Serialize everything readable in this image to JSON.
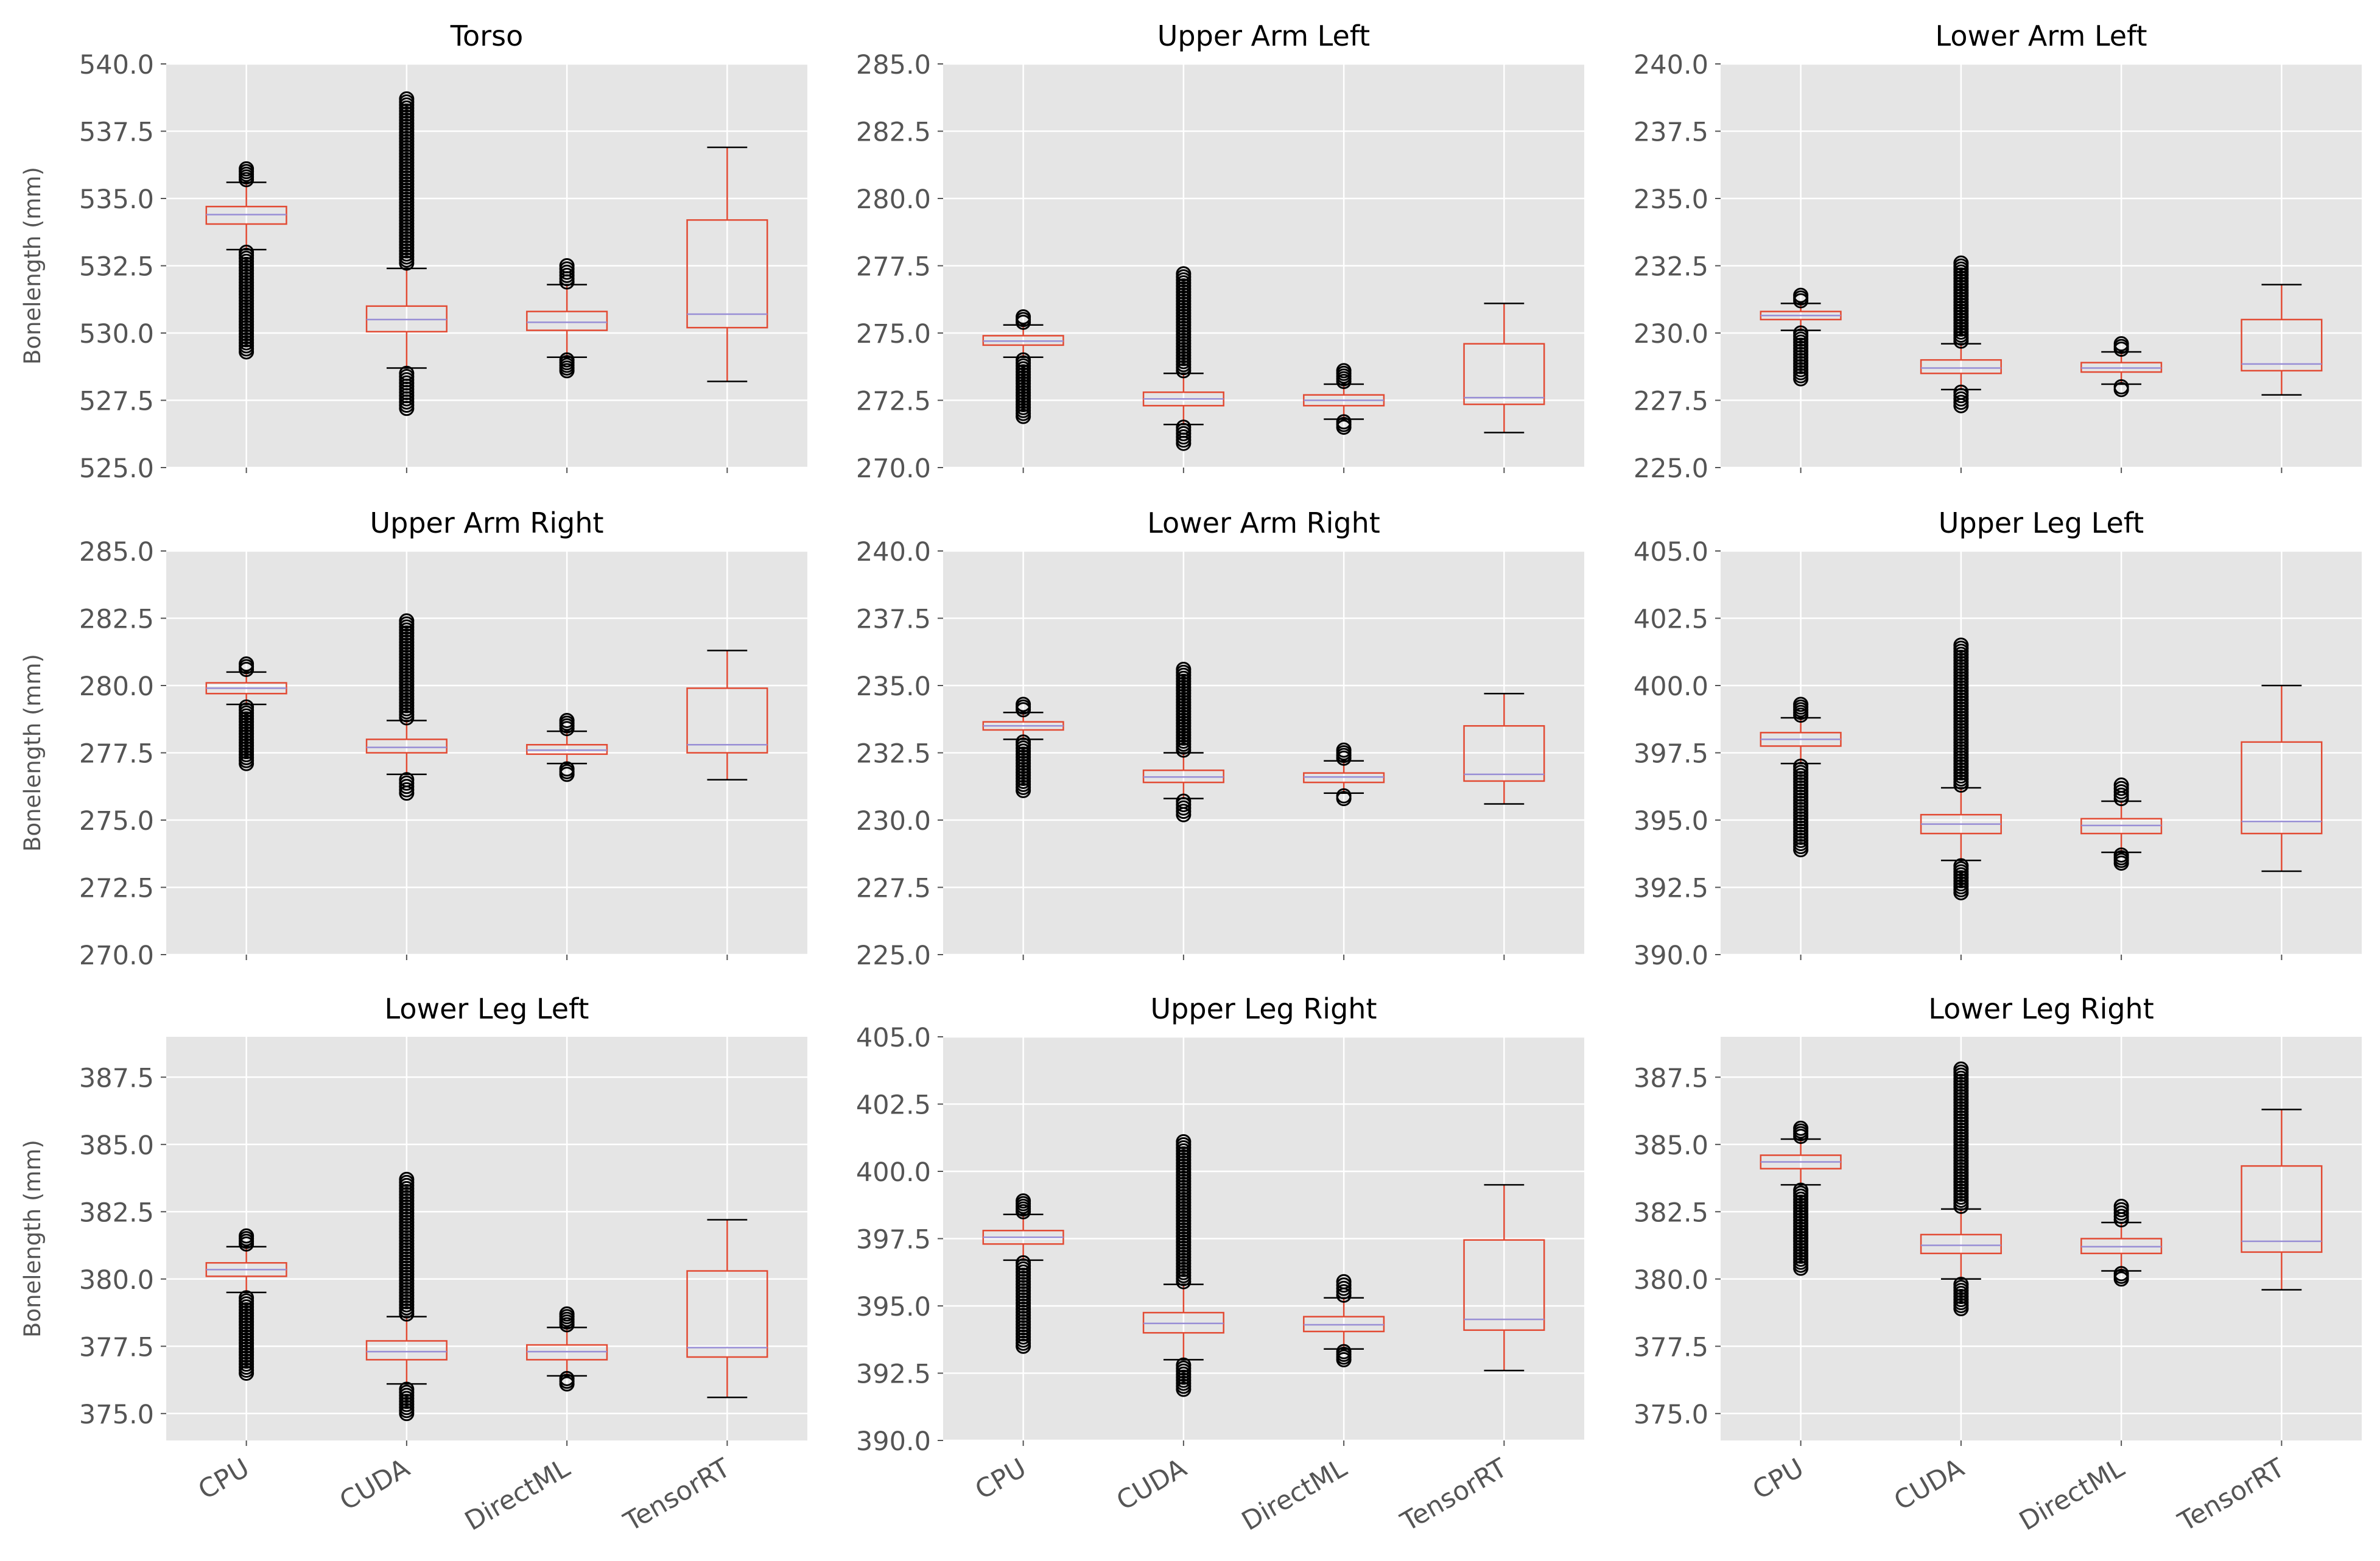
{
  "figure": {
    "background": "#ffffff",
    "panel_background": "#e5e5e5",
    "grid_color": "#ffffff",
    "box_color": "#e24a33",
    "median_color": "#988ed5",
    "text_color": "#555555",
    "title_color": "#000000"
  },
  "chart_data": [
    {
      "type": "box",
      "title": "Torso",
      "ylabel": "Bonelength (mm)",
      "ylim": [
        525.0,
        540.0
      ],
      "yticks": [
        "525.0",
        "527.5",
        "530.0",
        "532.5",
        "535.0",
        "537.5",
        "540.0"
      ],
      "categories": [
        "CPU",
        "CUDA",
        "DirectML",
        "TensorRT"
      ],
      "series": [
        {
          "whisker_low": 533.1,
          "q1": 534.05,
          "median": 534.4,
          "q3": 534.7,
          "whisker_high": 535.6,
          "outliers_low": [
            529.3,
            533.0
          ],
          "outliers_high": [
            535.7,
            536.1
          ]
        },
        {
          "whisker_low": 528.7,
          "q1": 530.05,
          "median": 530.5,
          "q3": 531.0,
          "whisker_high": 532.4,
          "outliers_low": [
            527.2,
            528.5
          ],
          "outliers_high": [
            532.6,
            538.7
          ]
        },
        {
          "whisker_low": 529.1,
          "q1": 530.1,
          "median": 530.4,
          "q3": 530.8,
          "whisker_high": 531.8,
          "outliers_low": [
            528.6,
            529.0
          ],
          "outliers_high": [
            531.9,
            532.5
          ]
        },
        {
          "whisker_low": 528.2,
          "q1": 530.2,
          "median": 530.7,
          "q3": 534.2,
          "whisker_high": 536.9,
          "outliers_low": [],
          "outliers_high": []
        }
      ]
    },
    {
      "type": "box",
      "title": "Upper Arm Left",
      "ylabel": "",
      "ylim": [
        270.0,
        285.0
      ],
      "yticks": [
        "270.0",
        "272.5",
        "275.0",
        "277.5",
        "280.0",
        "282.5",
        "285.0"
      ],
      "categories": [
        "CPU",
        "CUDA",
        "DirectML",
        "TensorRT"
      ],
      "series": [
        {
          "whisker_low": 274.1,
          "q1": 274.55,
          "median": 274.7,
          "q3": 274.9,
          "whisker_high": 275.3,
          "outliers_low": [
            271.9,
            274.0
          ],
          "outliers_high": [
            275.4,
            275.6
          ]
        },
        {
          "whisker_low": 271.6,
          "q1": 272.3,
          "median": 272.55,
          "q3": 272.8,
          "whisker_high": 273.5,
          "outliers_low": [
            270.9,
            271.5
          ],
          "outliers_high": [
            273.6,
            277.2
          ]
        },
        {
          "whisker_low": 271.8,
          "q1": 272.3,
          "median": 272.5,
          "q3": 272.7,
          "whisker_high": 273.1,
          "outliers_low": [
            271.5,
            271.7
          ],
          "outliers_high": [
            273.2,
            273.6
          ]
        },
        {
          "whisker_low": 271.3,
          "q1": 272.35,
          "median": 272.6,
          "q3": 274.6,
          "whisker_high": 276.1,
          "outliers_low": [],
          "outliers_high": []
        }
      ]
    },
    {
      "type": "box",
      "title": "Lower Arm Left",
      "ylabel": "",
      "ylim": [
        225.0,
        240.0
      ],
      "yticks": [
        "225.0",
        "227.5",
        "230.0",
        "232.5",
        "235.0",
        "237.5",
        "240.0"
      ],
      "categories": [
        "CPU",
        "CUDA",
        "DirectML",
        "TensorRT"
      ],
      "series": [
        {
          "whisker_low": 230.1,
          "q1": 230.5,
          "median": 230.65,
          "q3": 230.8,
          "whisker_high": 231.1,
          "outliers_low": [
            228.3,
            230.0
          ],
          "outliers_high": [
            231.2,
            231.4
          ]
        },
        {
          "whisker_low": 227.9,
          "q1": 228.5,
          "median": 228.7,
          "q3": 229.0,
          "whisker_high": 229.6,
          "outliers_low": [
            227.3,
            227.8
          ],
          "outliers_high": [
            229.7,
            232.6
          ]
        },
        {
          "whisker_low": 228.1,
          "q1": 228.55,
          "median": 228.7,
          "q3": 228.9,
          "whisker_high": 229.3,
          "outliers_low": [
            227.9,
            228.0
          ],
          "outliers_high": [
            229.4,
            229.6
          ]
        },
        {
          "whisker_low": 227.7,
          "q1": 228.6,
          "median": 228.85,
          "q3": 230.5,
          "whisker_high": 231.8,
          "outliers_low": [],
          "outliers_high": []
        }
      ]
    },
    {
      "type": "box",
      "title": "Upper Arm Right",
      "ylabel": "Bonelength (mm)",
      "ylim": [
        270.0,
        285.0
      ],
      "yticks": [
        "270.0",
        "272.5",
        "275.0",
        "277.5",
        "280.0",
        "282.5",
        "285.0"
      ],
      "categories": [
        "CPU",
        "CUDA",
        "DirectML",
        "TensorRT"
      ],
      "series": [
        {
          "whisker_low": 279.3,
          "q1": 279.7,
          "median": 279.9,
          "q3": 280.1,
          "whisker_high": 280.5,
          "outliers_low": [
            277.1,
            279.2
          ],
          "outliers_high": [
            280.6,
            280.8
          ]
        },
        {
          "whisker_low": 276.7,
          "q1": 277.5,
          "median": 277.7,
          "q3": 278.0,
          "whisker_high": 278.7,
          "outliers_low": [
            276.0,
            276.5
          ],
          "outliers_high": [
            278.8,
            282.4
          ]
        },
        {
          "whisker_low": 277.1,
          "q1": 277.45,
          "median": 277.6,
          "q3": 277.8,
          "whisker_high": 278.3,
          "outliers_low": [
            276.7,
            276.9
          ],
          "outliers_high": [
            278.4,
            278.7
          ]
        },
        {
          "whisker_low": 276.5,
          "q1": 277.5,
          "median": 277.8,
          "q3": 279.9,
          "whisker_high": 281.3,
          "outliers_low": [],
          "outliers_high": []
        }
      ]
    },
    {
      "type": "box",
      "title": "Lower Arm Right",
      "ylabel": "",
      "ylim": [
        225.0,
        240.0
      ],
      "yticks": [
        "225.0",
        "227.5",
        "230.0",
        "232.5",
        "235.0",
        "237.5",
        "240.0"
      ],
      "categories": [
        "CPU",
        "CUDA",
        "DirectML",
        "TensorRT"
      ],
      "series": [
        {
          "whisker_low": 233.0,
          "q1": 233.35,
          "median": 233.5,
          "q3": 233.65,
          "whisker_high": 234.0,
          "outliers_low": [
            231.1,
            232.9
          ],
          "outliers_high": [
            234.1,
            234.3
          ]
        },
        {
          "whisker_low": 230.8,
          "q1": 231.4,
          "median": 231.6,
          "q3": 231.85,
          "whisker_high": 232.5,
          "outliers_low": [
            230.2,
            230.7
          ],
          "outliers_high": [
            232.6,
            235.6
          ]
        },
        {
          "whisker_low": 231.0,
          "q1": 231.4,
          "median": 231.6,
          "q3": 231.75,
          "whisker_high": 232.2,
          "outliers_low": [
            230.8,
            230.9
          ],
          "outliers_high": [
            232.3,
            232.6
          ]
        },
        {
          "whisker_low": 230.6,
          "q1": 231.45,
          "median": 231.7,
          "q3": 233.5,
          "whisker_high": 234.7,
          "outliers_low": [],
          "outliers_high": []
        }
      ]
    },
    {
      "type": "box",
      "title": "Upper Leg Left",
      "ylabel": "",
      "ylim": [
        390.0,
        405.0
      ],
      "yticks": [
        "390.0",
        "392.5",
        "395.0",
        "397.5",
        "400.0",
        "402.5",
        "405.0"
      ],
      "categories": [
        "CPU",
        "CUDA",
        "DirectML",
        "TensorRT"
      ],
      "series": [
        {
          "whisker_low": 397.1,
          "q1": 397.75,
          "median": 398.0,
          "q3": 398.25,
          "whisker_high": 398.8,
          "outliers_low": [
            393.9,
            397.0
          ],
          "outliers_high": [
            398.9,
            399.3
          ]
        },
        {
          "whisker_low": 393.5,
          "q1": 394.5,
          "median": 394.85,
          "q3": 395.2,
          "whisker_high": 396.2,
          "outliers_low": [
            392.3,
            393.3
          ],
          "outliers_high": [
            396.3,
            401.5
          ]
        },
        {
          "whisker_low": 393.8,
          "q1": 394.5,
          "median": 394.8,
          "q3": 395.05,
          "whisker_high": 395.7,
          "outliers_low": [
            393.4,
            393.7
          ],
          "outliers_high": [
            395.8,
            396.3
          ]
        },
        {
          "whisker_low": 393.1,
          "q1": 394.5,
          "median": 394.95,
          "q3": 397.9,
          "whisker_high": 400.0,
          "outliers_low": [],
          "outliers_high": []
        }
      ]
    },
    {
      "type": "box",
      "title": "Lower Leg Left",
      "ylabel": "Bonelength (mm)",
      "ylim": [
        374.0,
        389.0
      ],
      "yticks": [
        "375.0",
        "377.5",
        "380.0",
        "382.5",
        "385.0",
        "387.5"
      ],
      "categories": [
        "CPU",
        "CUDA",
        "DirectML",
        "TensorRT"
      ],
      "series": [
        {
          "whisker_low": 379.5,
          "q1": 380.1,
          "median": 380.35,
          "q3": 380.6,
          "whisker_high": 381.2,
          "outliers_low": [
            376.5,
            379.3
          ],
          "outliers_high": [
            381.3,
            381.6
          ]
        },
        {
          "whisker_low": 376.1,
          "q1": 377.0,
          "median": 377.3,
          "q3": 377.7,
          "whisker_high": 378.6,
          "outliers_low": [
            375.0,
            375.9
          ],
          "outliers_high": [
            378.7,
            383.7
          ]
        },
        {
          "whisker_low": 376.4,
          "q1": 377.0,
          "median": 377.3,
          "q3": 377.55,
          "whisker_high": 378.2,
          "outliers_low": [
            376.1,
            376.3
          ],
          "outliers_high": [
            378.3,
            378.7
          ]
        },
        {
          "whisker_low": 375.6,
          "q1": 377.1,
          "median": 377.45,
          "q3": 380.3,
          "whisker_high": 382.2,
          "outliers_low": [],
          "outliers_high": []
        }
      ]
    },
    {
      "type": "box",
      "title": "Upper Leg Right",
      "ylabel": "",
      "ylim": [
        390.0,
        405.0
      ],
      "yticks": [
        "390.0",
        "392.5",
        "395.0",
        "397.5",
        "400.0",
        "402.5",
        "405.0"
      ],
      "categories": [
        "CPU",
        "CUDA",
        "DirectML",
        "TensorRT"
      ],
      "series": [
        {
          "whisker_low": 396.7,
          "q1": 397.3,
          "median": 397.55,
          "q3": 397.8,
          "whisker_high": 398.4,
          "outliers_low": [
            393.5,
            396.6
          ],
          "outliers_high": [
            398.5,
            398.9
          ]
        },
        {
          "whisker_low": 393.0,
          "q1": 394.0,
          "median": 394.35,
          "q3": 394.75,
          "whisker_high": 395.8,
          "outliers_low": [
            391.9,
            392.8
          ],
          "outliers_high": [
            395.9,
            401.1
          ]
        },
        {
          "whisker_low": 393.4,
          "q1": 394.05,
          "median": 394.3,
          "q3": 394.6,
          "whisker_high": 395.3,
          "outliers_low": [
            393.0,
            393.3
          ],
          "outliers_high": [
            395.4,
            395.9
          ]
        },
        {
          "whisker_low": 392.6,
          "q1": 394.1,
          "median": 394.5,
          "q3": 397.45,
          "whisker_high": 399.5,
          "outliers_low": [],
          "outliers_high": []
        }
      ]
    },
    {
      "type": "box",
      "title": "Lower Leg Right",
      "ylabel": "",
      "ylim": [
        374.0,
        389.0
      ],
      "yticks": [
        "375.0",
        "377.5",
        "380.0",
        "382.5",
        "385.0",
        "387.5"
      ],
      "categories": [
        "CPU",
        "CUDA",
        "DirectML",
        "TensorRT"
      ],
      "series": [
        {
          "whisker_low": 383.5,
          "q1": 384.1,
          "median": 384.35,
          "q3": 384.6,
          "whisker_high": 385.2,
          "outliers_low": [
            380.4,
            383.3
          ],
          "outliers_high": [
            385.3,
            385.6
          ]
        },
        {
          "whisker_low": 380.0,
          "q1": 380.95,
          "median": 381.25,
          "q3": 381.65,
          "whisker_high": 382.6,
          "outliers_low": [
            378.9,
            379.8
          ],
          "outliers_high": [
            382.7,
            387.8
          ]
        },
        {
          "whisker_low": 380.3,
          "q1": 380.95,
          "median": 381.2,
          "q3": 381.5,
          "whisker_high": 382.1,
          "outliers_low": [
            380.0,
            380.2
          ],
          "outliers_high": [
            382.2,
            382.7
          ]
        },
        {
          "whisker_low": 379.6,
          "q1": 381.0,
          "median": 381.4,
          "q3": 384.2,
          "whisker_high": 386.3,
          "outliers_low": [],
          "outliers_high": []
        }
      ]
    }
  ]
}
